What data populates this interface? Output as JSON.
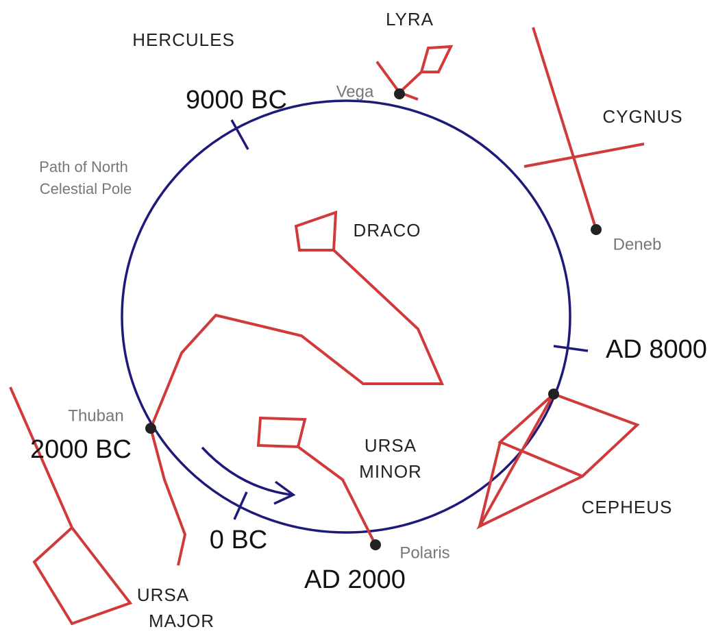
{
  "constellations": {
    "hercules": "HERCULES",
    "lyra": "LYRA",
    "cygnus": "CYGNUS",
    "draco": "DRACO",
    "ursa_minor": [
      "URSA",
      "MINOR"
    ],
    "cepheus": "CEPHEUS",
    "ursa_major": [
      "URSA",
      "MAJOR"
    ]
  },
  "stars": {
    "vega": "Vega",
    "deneb": "Deneb",
    "thuban": "Thuban",
    "polaris": "Polaris"
  },
  "epochs": {
    "bc9000": "9000 BC",
    "ad8000": "AD 8000",
    "bc2000": "2000 BC",
    "bc0": "0 BC",
    "ad2000": "AD 2000"
  },
  "path_label": [
    "Path of North",
    "Celestial Pole"
  ]
}
